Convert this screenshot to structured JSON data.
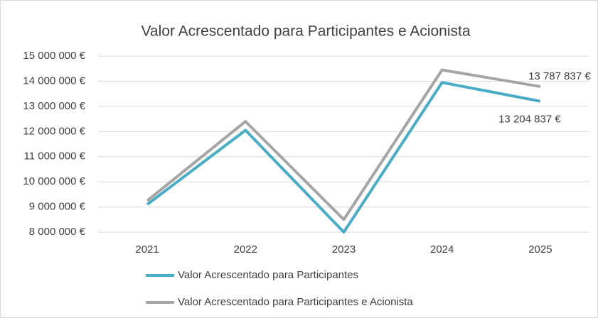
{
  "chart_data": {
    "type": "line",
    "title": "Valor Acrescentado para Participantes e Acionista",
    "categories": [
      "2021",
      "2022",
      "2023",
      "2024",
      "2025"
    ],
    "series": [
      {
        "name": "Valor Acrescentado para Participantes",
        "color": "#4bacc6",
        "values": [
          9100000,
          12050000,
          8000000,
          13950000,
          13204837
        ],
        "value_labels": [
          null,
          null,
          null,
          null,
          "13 204 837 €"
        ]
      },
      {
        "name": "Valor Acrescentado para Participantes e Acionista",
        "color": "#a5a5a5",
        "values": [
          9250000,
          12400000,
          8500000,
          14450000,
          13787837
        ],
        "value_labels": [
          null,
          null,
          null,
          null,
          "13 787 837 €"
        ]
      }
    ],
    "ylim": [
      8000000,
      15000000
    ],
    "yticks": [
      {
        "value": 8000000,
        "label": "8 000 000 €"
      },
      {
        "value": 9000000,
        "label": "9 000 000 €"
      },
      {
        "value": 10000000,
        "label": "10 000 000 €"
      },
      {
        "value": 11000000,
        "label": "11 000 000 €"
      },
      {
        "value": 12000000,
        "label": "12 000 000 €"
      },
      {
        "value": 13000000,
        "label": "13 000 000 €"
      },
      {
        "value": 14000000,
        "label": "14 000 000 €"
      },
      {
        "value": 15000000,
        "label": "15 000 000 €"
      }
    ],
    "grid": true,
    "legend": "bottom"
  }
}
